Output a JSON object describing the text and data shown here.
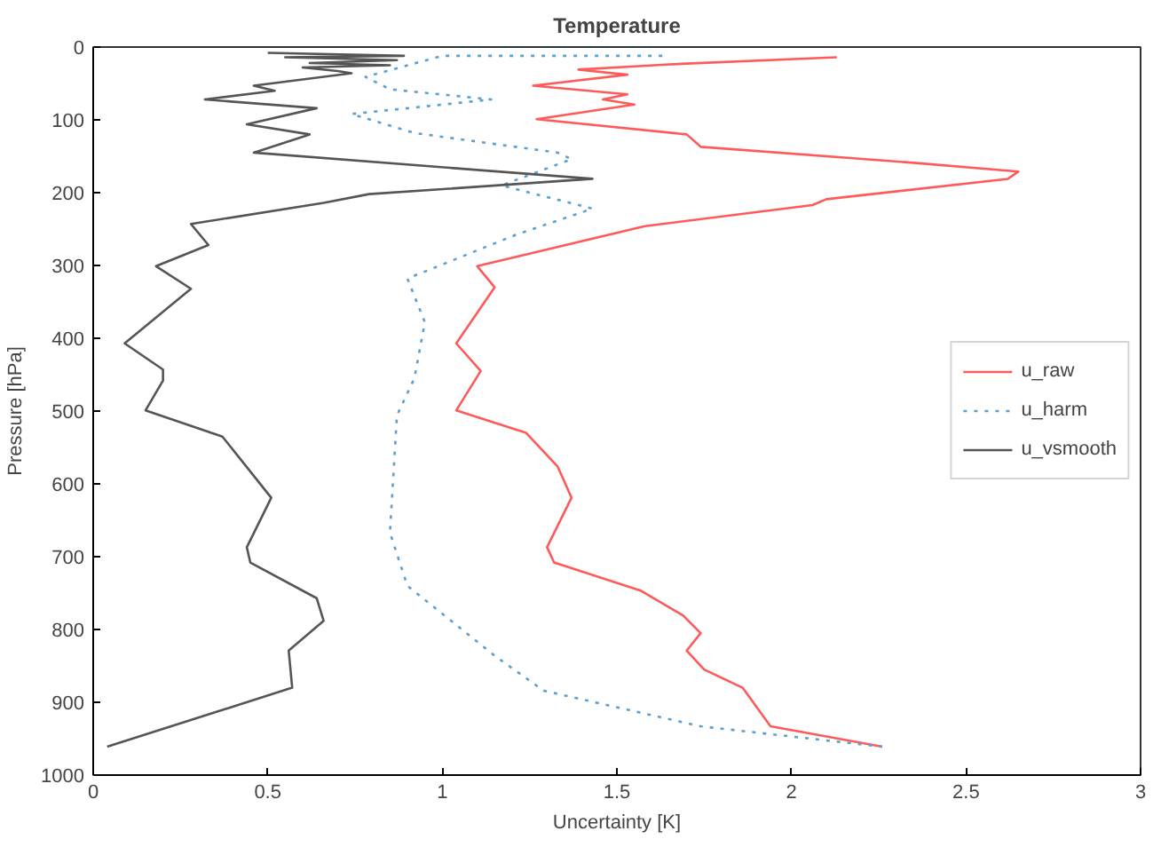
{
  "chart_data": {
    "type": "line",
    "title": "Temperature",
    "xlabel": "Uncertainty [K]",
    "ylabel": "Pressure [hPa]",
    "xlim": [
      0,
      3
    ],
    "xticks": [
      0,
      0.5,
      1,
      1.5,
      2,
      2.5,
      3
    ],
    "ylim": [
      1000,
      0
    ],
    "yticks": [
      0,
      100,
      200,
      300,
      400,
      500,
      600,
      700,
      800,
      900,
      1000
    ],
    "grid": false,
    "legend": "right",
    "marker": "none",
    "series": [
      {
        "name": "u_raw",
        "color": "#ff5a5a",
        "line_style": "solid",
        "values": [
          14,
          24,
          31,
          38,
          53,
          65,
          72,
          79,
          99,
          120,
          137,
          159,
          171,
          181,
          209,
          217,
          246,
          301,
          330,
          407,
          445,
          499,
          530,
          576,
          619,
          687,
          708,
          747,
          781,
          805,
          829,
          855,
          880,
          933,
          961
        ],
        "x": [
          2.13,
          1.64,
          1.39,
          1.53,
          1.26,
          1.53,
          1.46,
          1.55,
          1.27,
          1.7,
          1.74,
          2.35,
          2.65,
          2.62,
          2.1,
          2.06,
          1.58,
          1.1,
          1.15,
          1.04,
          1.11,
          1.04,
          1.24,
          1.33,
          1.37,
          1.3,
          1.32,
          1.57,
          1.69,
          1.74,
          1.7,
          1.75,
          1.86,
          1.94,
          2.26
        ]
      },
      {
        "name": "u_harm",
        "color": "#5aa0d0",
        "line_style": "dotted",
        "values": [
          12,
          12,
          41,
          58,
          72,
          92,
          118,
          145,
          154,
          190,
          222,
          258,
          318,
          378,
          455,
          506,
          667,
          740,
          836,
          884,
          933,
          961
        ],
        "x": [
          1.63,
          1.0,
          0.78,
          0.85,
          1.14,
          0.74,
          0.92,
          1.33,
          1.37,
          1.17,
          1.43,
          1.21,
          0.9,
          0.95,
          0.92,
          0.87,
          0.85,
          0.9,
          1.15,
          1.29,
          1.74,
          2.26
        ]
      },
      {
        "name": "u_vsmooth",
        "color": "#555555",
        "line_style": "solid",
        "values": [
          8,
          12,
          14,
          18,
          22,
          25,
          28,
          33,
          36,
          53,
          60,
          72,
          84,
          106,
          120,
          145,
          181,
          202,
          214,
          243,
          272,
          301,
          332,
          407,
          443,
          458,
          499,
          535,
          619,
          687,
          708,
          757,
          788,
          829,
          880,
          961
        ],
        "x": [
          0.5,
          0.89,
          0.55,
          0.87,
          0.62,
          0.85,
          0.6,
          0.7,
          0.74,
          0.46,
          0.52,
          0.32,
          0.64,
          0.44,
          0.62,
          0.46,
          1.43,
          0.79,
          0.66,
          0.28,
          0.33,
          0.18,
          0.28,
          0.09,
          0.2,
          0.2,
          0.15,
          0.37,
          0.51,
          0.44,
          0.45,
          0.64,
          0.66,
          0.56,
          0.57,
          0.04
        ]
      }
    ]
  }
}
